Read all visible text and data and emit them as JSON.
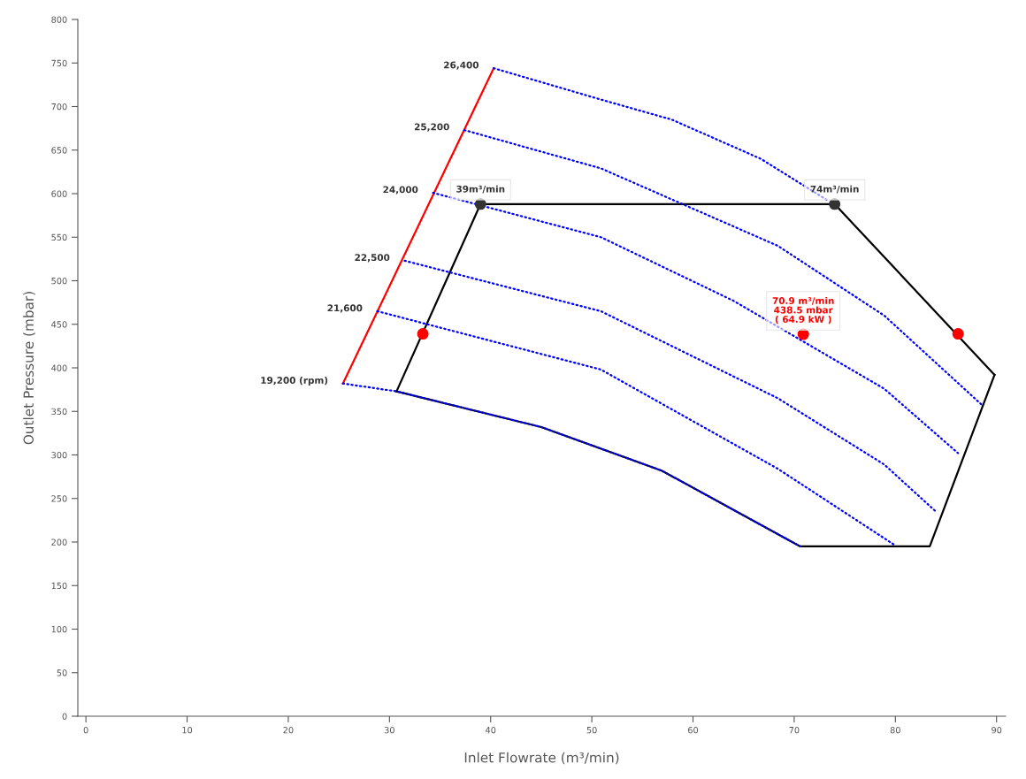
{
  "chart_data": {
    "type": "line",
    "xlabel": "Inlet Flowrate (m³/min)",
    "ylabel": "Outlet Pressure (mbar)",
    "xlim": [
      -0.8,
      90.9
    ],
    "ylim": [
      0,
      800
    ],
    "xticks": [
      0,
      10,
      20,
      30,
      40,
      50,
      60,
      70,
      80,
      90
    ],
    "yticks": [
      0,
      50,
      100,
      150,
      200,
      250,
      300,
      350,
      400,
      450,
      500,
      550,
      600,
      650,
      700,
      750,
      800
    ],
    "grid": false,
    "legend": false,
    "series": [
      {
        "color": "#ff0000",
        "line_style": "solid",
        "x": [
          25.4,
          40.3
        ],
        "values": [
          382,
          744
        ]
      },
      {
        "color": "#0000ff",
        "line_style": "dotted",
        "x": [
          40.3,
          50.9,
          57.9,
          66.7,
          73.2
        ],
        "values": [
          744,
          708,
          685,
          640,
          593
        ]
      },
      {
        "color": "#0000ff",
        "line_style": "dotted",
        "x": [
          37.4,
          50.9,
          68.4,
          78.9,
          88.5
        ],
        "values": [
          673,
          629,
          540,
          460,
          358
        ]
      },
      {
        "color": "#0000ff",
        "line_style": "dotted",
        "x": [
          34.3,
          50.9,
          64,
          78.9,
          86.2
        ],
        "values": [
          601,
          550,
          477,
          376,
          302
        ]
      },
      {
        "color": "#0000ff",
        "line_style": "dotted",
        "x": [
          31.5,
          50.9,
          68.4,
          78.9,
          84.1
        ],
        "values": [
          523,
          465,
          365,
          289,
          234
        ]
      },
      {
        "color": "#0000ff",
        "line_style": "dotted",
        "x": [
          28.8,
          50.9,
          68.4,
          80.0
        ],
        "values": [
          465,
          398,
          284,
          196
        ]
      },
      {
        "color": "#0000ff",
        "line_style": "dotted",
        "x": [
          25.4,
          30.7,
          45.0,
          56.9,
          70.6
        ],
        "values": [
          382,
          373,
          332,
          282,
          195
        ]
      },
      {
        "color": "#000000",
        "line_style": "solid",
        "x": [
          30.7,
          39,
          74,
          89.8
        ],
        "values": [
          373,
          588,
          588,
          392
        ]
      },
      {
        "color": "#000000",
        "line_style": "solid",
        "x": [
          30.7,
          45.0,
          56.9,
          70.6,
          83.4,
          89.8
        ],
        "values": [
          373,
          332,
          282,
          195,
          195,
          392
        ]
      },
      {
        "type": "scatter",
        "color": "#333333",
        "marker": "circle",
        "x": [
          39,
          74
        ],
        "values": [
          588,
          588
        ]
      },
      {
        "type": "scatter",
        "color": "#ff0000",
        "marker": "circle",
        "x": [
          33.3,
          70.9,
          86.2
        ],
        "values": [
          439,
          438.5,
          439
        ]
      }
    ],
    "annotations": [
      {
        "text": "26,400",
        "x": 40.3,
        "y": 744
      },
      {
        "text": "25,200",
        "x": 37.4,
        "y": 673
      },
      {
        "text": "24,000",
        "x": 34.3,
        "y": 601
      },
      {
        "text": "22,500",
        "x": 31.5,
        "y": 523
      },
      {
        "text": "21,600",
        "x": 28.8,
        "y": 465
      },
      {
        "text": "19,200 (rpm)",
        "x": 25.4,
        "y": 382
      },
      {
        "text": "39m³/min",
        "x": 39,
        "y": 588
      },
      {
        "text": "74m³/min",
        "x": 74,
        "y": 588
      },
      {
        "text": "70.9 m³/min\n438.5 mbar\n( 64.9 kW )",
        "x": 70.9,
        "y": 438.5
      }
    ]
  }
}
